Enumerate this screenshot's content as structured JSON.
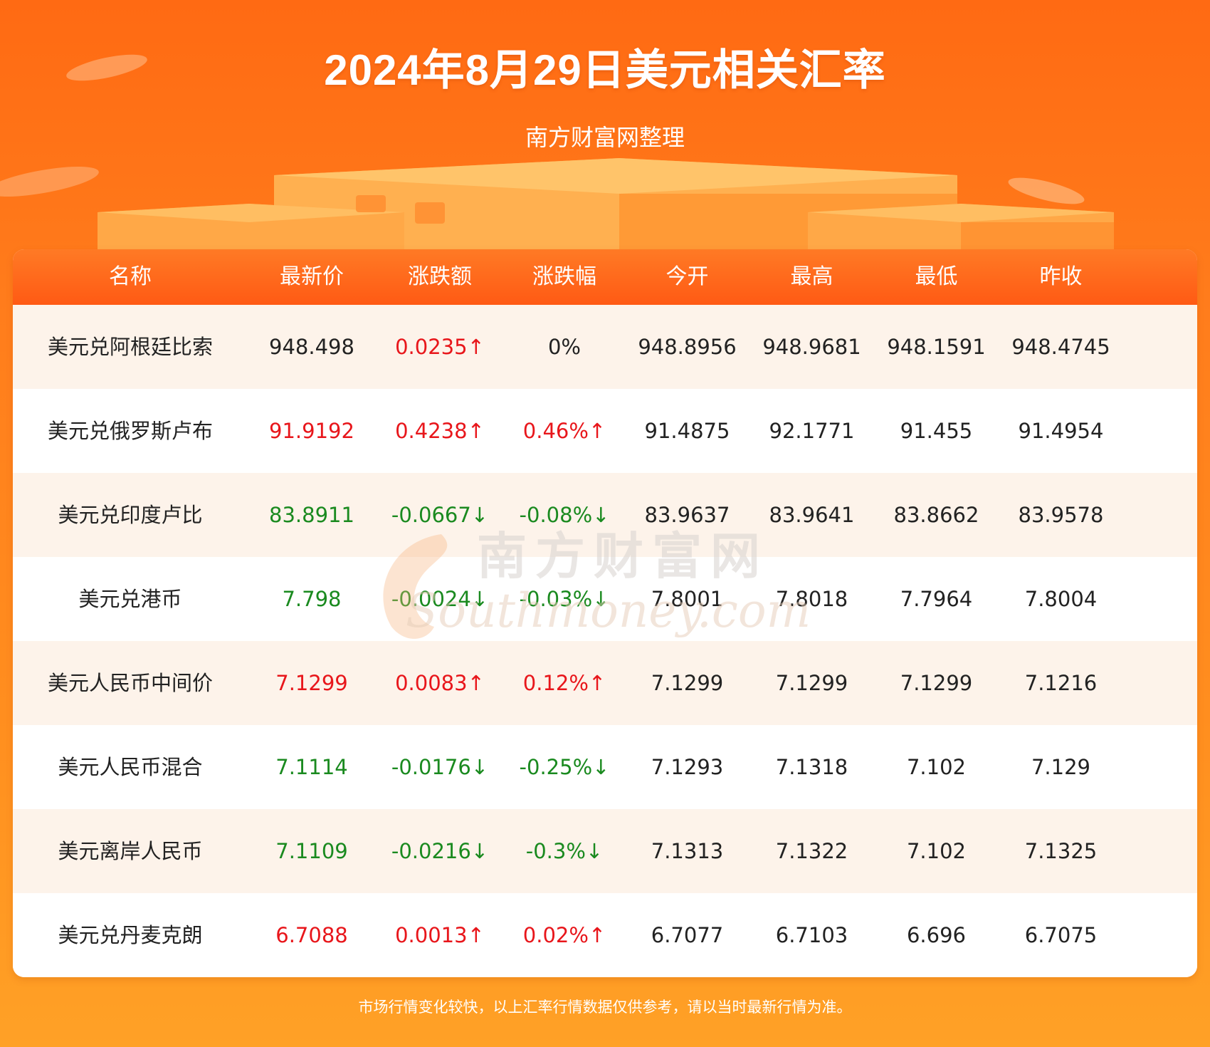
{
  "header": {
    "title": "2024年8月29日美元相关汇率",
    "subtitle": "南方财富网整理"
  },
  "table": {
    "columns": [
      "名称",
      "最新价",
      "涨跌额",
      "涨跌幅",
      "今开",
      "最高",
      "最低",
      "昨收"
    ],
    "rows": [
      {
        "name": "美元兑阿根廷比索",
        "latest": "948.498",
        "change": "0.0235↑",
        "change_pct": "0%",
        "open": "948.8956",
        "high": "948.9681",
        "low": "948.1591",
        "prev_close": "948.4745",
        "latest_trend": "flat",
        "change_trend": "up",
        "pct_trend": "flat"
      },
      {
        "name": "美元兑俄罗斯卢布",
        "latest": "91.9192",
        "change": "0.4238↑",
        "change_pct": "0.46%↑",
        "open": "91.4875",
        "high": "92.1771",
        "low": "91.455",
        "prev_close": "91.4954",
        "latest_trend": "up",
        "change_trend": "up",
        "pct_trend": "up"
      },
      {
        "name": "美元兑印度卢比",
        "latest": "83.8911",
        "change": "-0.0667↓",
        "change_pct": "-0.08%↓",
        "open": "83.9637",
        "high": "83.9641",
        "low": "83.8662",
        "prev_close": "83.9578",
        "latest_trend": "down",
        "change_trend": "down",
        "pct_trend": "down"
      },
      {
        "name": "美元兑港币",
        "latest": "7.798",
        "change": "-0.0024↓",
        "change_pct": "-0.03%↓",
        "open": "7.8001",
        "high": "7.8018",
        "low": "7.7964",
        "prev_close": "7.8004",
        "latest_trend": "down",
        "change_trend": "down",
        "pct_trend": "down"
      },
      {
        "name": "美元人民币中间价",
        "latest": "7.1299",
        "change": "0.0083↑",
        "change_pct": "0.12%↑",
        "open": "7.1299",
        "high": "7.1299",
        "low": "7.1299",
        "prev_close": "7.1216",
        "latest_trend": "up",
        "change_trend": "up",
        "pct_trend": "up"
      },
      {
        "name": "美元人民币混合",
        "latest": "7.1114",
        "change": "-0.0176↓",
        "change_pct": "-0.25%↓",
        "open": "7.1293",
        "high": "7.1318",
        "low": "7.102",
        "prev_close": "7.129",
        "latest_trend": "down",
        "change_trend": "down",
        "pct_trend": "down"
      },
      {
        "name": "美元离岸人民币",
        "latest": "7.1109",
        "change": "-0.0216↓",
        "change_pct": "-0.3%↓",
        "open": "7.1313",
        "high": "7.1322",
        "low": "7.102",
        "prev_close": "7.1325",
        "latest_trend": "down",
        "change_trend": "down",
        "pct_trend": "down"
      },
      {
        "name": "美元兑丹麦克朗",
        "latest": "6.7088",
        "change": "0.0013↑",
        "change_pct": "0.02%↑",
        "open": "6.7077",
        "high": "6.7103",
        "low": "6.696",
        "prev_close": "6.7075",
        "latest_trend": "up",
        "change_trend": "up",
        "pct_trend": "up"
      }
    ]
  },
  "watermark": {
    "cn": "南方财富网",
    "en": "Southmoney.com"
  },
  "footer": {
    "note": "市场行情变化较快，以上汇率行情数据仅供参考，请以当时最新行情为准。"
  },
  "colors": {
    "up": "#e8161b",
    "down": "#1a8a1f",
    "brand": "#ff6a13"
  }
}
